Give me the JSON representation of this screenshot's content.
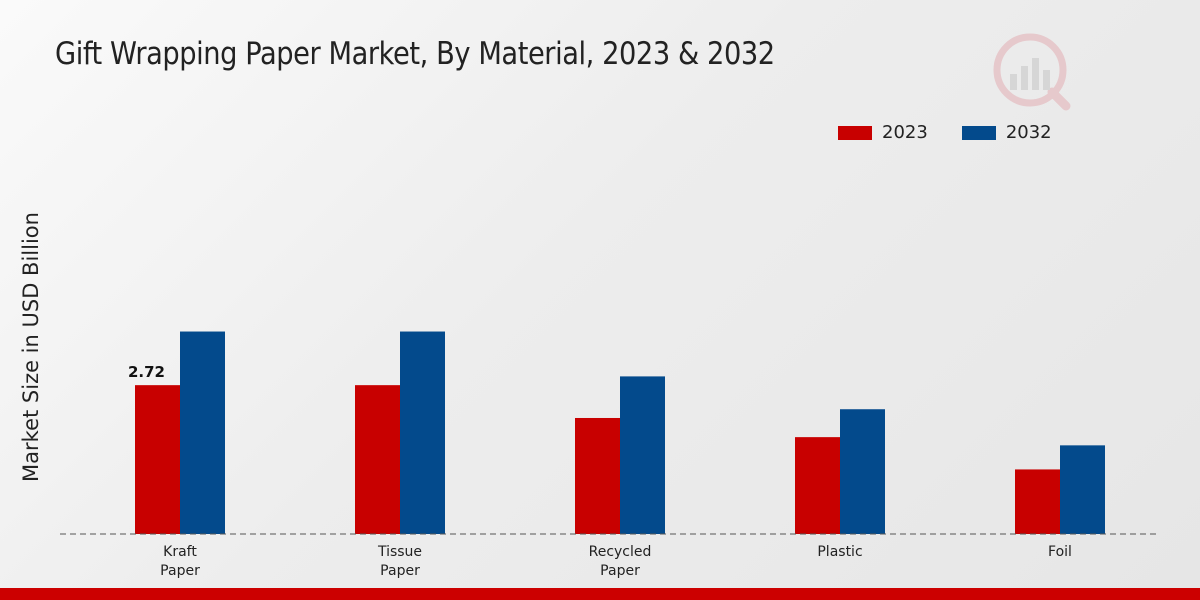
{
  "title": "Gift Wrapping Paper Market, By Material, 2023 & 2032",
  "colors": {
    "s2023": "#c80000",
    "s2032": "#034a8c",
    "baseline": "#555555",
    "footer": "#cc0000"
  },
  "chart_data": {
    "type": "bar",
    "title": "Gift Wrapping Paper Market, By Material, 2023 & 2032",
    "xlabel": "",
    "ylabel": "Market Size in USD Billion",
    "categories": [
      "Kraft\nPaper",
      "Tissue\nPaper",
      "Recycled\nPaper",
      "Plastic",
      "Foil"
    ],
    "series": [
      {
        "name": "2023",
        "color": "#c80000",
        "values": [
          2.72,
          2.72,
          2.12,
          1.77,
          1.18
        ]
      },
      {
        "name": "2032",
        "color": "#034a8c",
        "values": [
          3.7,
          3.7,
          2.88,
          2.28,
          1.62
        ]
      }
    ],
    "data_labels": [
      {
        "series": "2023",
        "category_index": 0,
        "text": "2.72"
      }
    ],
    "ylim": [
      0,
      7.2
    ],
    "grid": false,
    "legend_position": "top-right"
  }
}
